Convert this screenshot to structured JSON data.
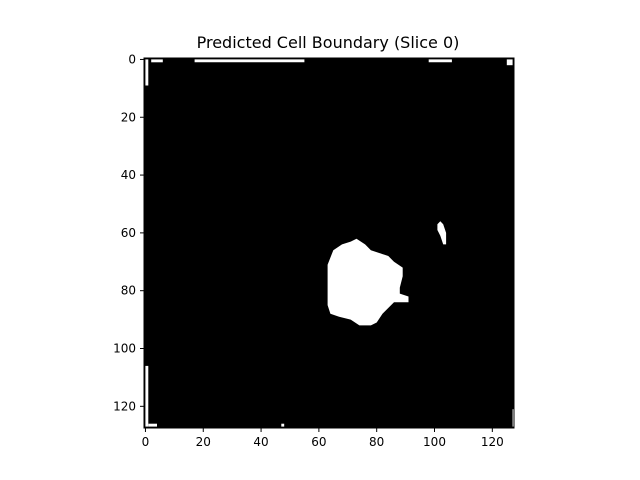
{
  "chart_data": {
    "type": "heatmap",
    "title": "Predicted Cell Boundary (Slice 0)",
    "xlabel": "",
    "ylabel": "",
    "image_shape": [
      128,
      128
    ],
    "xlim": [
      -0.5,
      127.5
    ],
    "ylim": [
      127.5,
      -0.5
    ],
    "xticks": [
      0,
      20,
      40,
      60,
      80,
      100,
      120
    ],
    "yticks": [
      0,
      20,
      40,
      60,
      80,
      100,
      120
    ],
    "colormap": "gray",
    "colors": {
      "background": "#000000",
      "foreground": "#ffffff"
    },
    "grid": false,
    "foreground_regions": [
      {
        "name": "main-blob",
        "outline": [
          [
            73,
            62
          ],
          [
            76,
            64
          ],
          [
            78,
            66
          ],
          [
            81,
            67
          ],
          [
            84,
            68
          ],
          [
            86,
            70
          ],
          [
            89,
            72
          ],
          [
            89,
            75
          ],
          [
            88,
            79
          ],
          [
            88,
            81
          ],
          [
            91,
            82
          ],
          [
            91,
            84
          ],
          [
            86,
            84
          ],
          [
            82,
            88
          ],
          [
            80,
            91
          ],
          [
            78,
            92
          ],
          [
            74,
            92
          ],
          [
            71,
            90
          ],
          [
            67,
            89
          ],
          [
            64,
            88
          ],
          [
            63,
            85
          ],
          [
            63,
            78
          ],
          [
            63,
            71
          ],
          [
            65,
            66
          ],
          [
            68,
            64
          ],
          [
            71,
            63
          ]
        ]
      },
      {
        "name": "small-blob",
        "outline": [
          [
            102,
            56
          ],
          [
            103,
            57
          ],
          [
            104,
            60
          ],
          [
            104,
            64
          ],
          [
            103,
            64
          ],
          [
            102,
            61
          ],
          [
            101,
            59
          ],
          [
            101,
            57
          ]
        ]
      },
      {
        "name": "edge-left-top",
        "outline": [
          [
            0,
            0
          ],
          [
            1,
            0
          ],
          [
            1,
            9
          ],
          [
            0,
            9
          ]
        ]
      },
      {
        "name": "edge-top-1",
        "outline": [
          [
            2,
            0
          ],
          [
            6,
            0
          ],
          [
            6,
            1
          ],
          [
            2,
            1
          ]
        ]
      },
      {
        "name": "edge-top-2",
        "outline": [
          [
            17,
            0
          ],
          [
            55,
            0
          ],
          [
            55,
            1
          ],
          [
            17,
            1
          ]
        ]
      },
      {
        "name": "edge-top-3",
        "outline": [
          [
            98,
            0
          ],
          [
            106,
            0
          ],
          [
            106,
            1
          ],
          [
            98,
            1
          ]
        ]
      },
      {
        "name": "edge-top-right",
        "outline": [
          [
            125,
            0
          ],
          [
            127,
            0
          ],
          [
            127,
            2
          ],
          [
            125,
            2
          ]
        ]
      },
      {
        "name": "edge-left-bottom",
        "outline": [
          [
            0,
            106
          ],
          [
            1,
            106
          ],
          [
            1,
            127
          ],
          [
            0,
            127
          ]
        ]
      },
      {
        "name": "edge-bottom-1",
        "outline": [
          [
            1,
            126
          ],
          [
            4,
            126
          ],
          [
            4,
            127
          ],
          [
            1,
            127
          ]
        ]
      },
      {
        "name": "edge-bottom-2",
        "outline": [
          [
            47,
            126
          ],
          [
            48,
            126
          ],
          [
            48,
            127
          ],
          [
            47,
            127
          ]
        ]
      },
      {
        "name": "edge-right-bottom",
        "outline": [
          [
            127,
            121
          ],
          [
            127.5,
            121
          ],
          [
            127.5,
            127
          ],
          [
            127,
            127
          ]
        ]
      }
    ]
  }
}
